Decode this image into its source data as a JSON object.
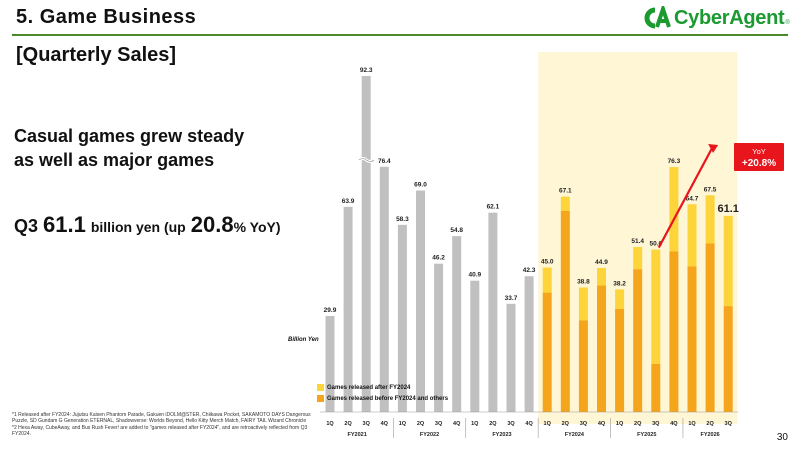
{
  "header": {
    "section_title": "5.  Game Business",
    "subtitle": "[Quarterly Sales]",
    "logo_text": "CyberAgent",
    "logo_reg": "®"
  },
  "highlight": {
    "headline_line1": "Casual games grew steady",
    "headline_line2": "as well as major games",
    "q3_label": "Q3",
    "q3_value": "61.1",
    "q3_unit": "billion yen (up",
    "q3_growth": "20.8",
    "q3_suffix": "% YoY)"
  },
  "chart_data": {
    "type": "bar",
    "unit": "Billion Yen",
    "fiscal_years": [
      "FY2021",
      "FY2022",
      "FY2023",
      "FY2024",
      "FY2025",
      "FY2026"
    ],
    "categories": [
      "1Q",
      "2Q",
      "3Q",
      "4Q",
      "1Q",
      "2Q",
      "3Q",
      "4Q",
      "1Q",
      "2Q",
      "3Q",
      "4Q",
      "1Q",
      "2Q",
      "3Q",
      "4Q",
      "1Q",
      "2Q",
      "3Q",
      "4Q",
      "1Q",
      "2Q",
      "3Q"
    ],
    "totals": [
      29.9,
      63.9,
      92.3,
      76.4,
      58.3,
      69.0,
      46.2,
      54.8,
      40.9,
      62.1,
      33.7,
      42.3,
      45.0,
      67.1,
      38.8,
      44.9,
      38.2,
      51.4,
      50.6,
      76.3,
      64.7,
      67.5,
      61.1
    ],
    "total_labels": [
      "29.9",
      "63.9",
      "92.3",
      "76.4",
      "58.3",
      "69.0",
      "46.2",
      "54.8",
      "40.9",
      "62.1",
      "33.7",
      "42.3",
      "45.0",
      "67.1",
      "38.8",
      "44.9",
      "38.2",
      "51.4",
      "50.6",
      "76.3",
      "64.7",
      "67.5",
      "61.1"
    ],
    "series": [
      {
        "name": "Games released before FY2024 and others",
        "color": "#f5a51c",
        "values": [
          null,
          null,
          null,
          null,
          null,
          null,
          null,
          null,
          null,
          null,
          null,
          null,
          37.2,
          62.7,
          28.6,
          39.4,
          32.1,
          44.5,
          15.0,
          50.0,
          45.4,
          52.5,
          33.0
        ]
      },
      {
        "name": "Games released after FY2024",
        "color": "#fdd43a",
        "values": [
          null,
          null,
          null,
          null,
          null,
          null,
          null,
          null,
          null,
          null,
          null,
          null,
          7.8,
          4.4,
          10.2,
          5.5,
          6.1,
          6.9,
          35.6,
          26.3,
          19.3,
          15.0,
          28.1
        ]
      }
    ],
    "pre_fy2024_color": "#c0c0c0",
    "axis_break": "92.3",
    "yoy": {
      "label": "YoY",
      "value": "+20.8%",
      "color": "#e8151c"
    }
  },
  "legend": {
    "after": "Games released after FY2024",
    "before": "Games released before FY2024 and others"
  },
  "footnotes": {
    "note1": "*1  Released after FY2024: Jujutsu Kaisen Phantom Parade, Gakuen iDOLM@STER, Chiikawa Pocket, SAKAMOTO DAYS Dangerous Puzzle, SD Gundam G Generation ETERNAL, Shadowverse: Worlds Beyond, Hello Kitty Merch Match, FAIRY TAIL Wizard Chronicle",
    "note2": "*2  Hexa Away, CubeAway, and Bus Rush Fever! are added to \"games released after FY2024\", and are retroactively reflected from Q3 FY2024."
  },
  "page_number": "30"
}
